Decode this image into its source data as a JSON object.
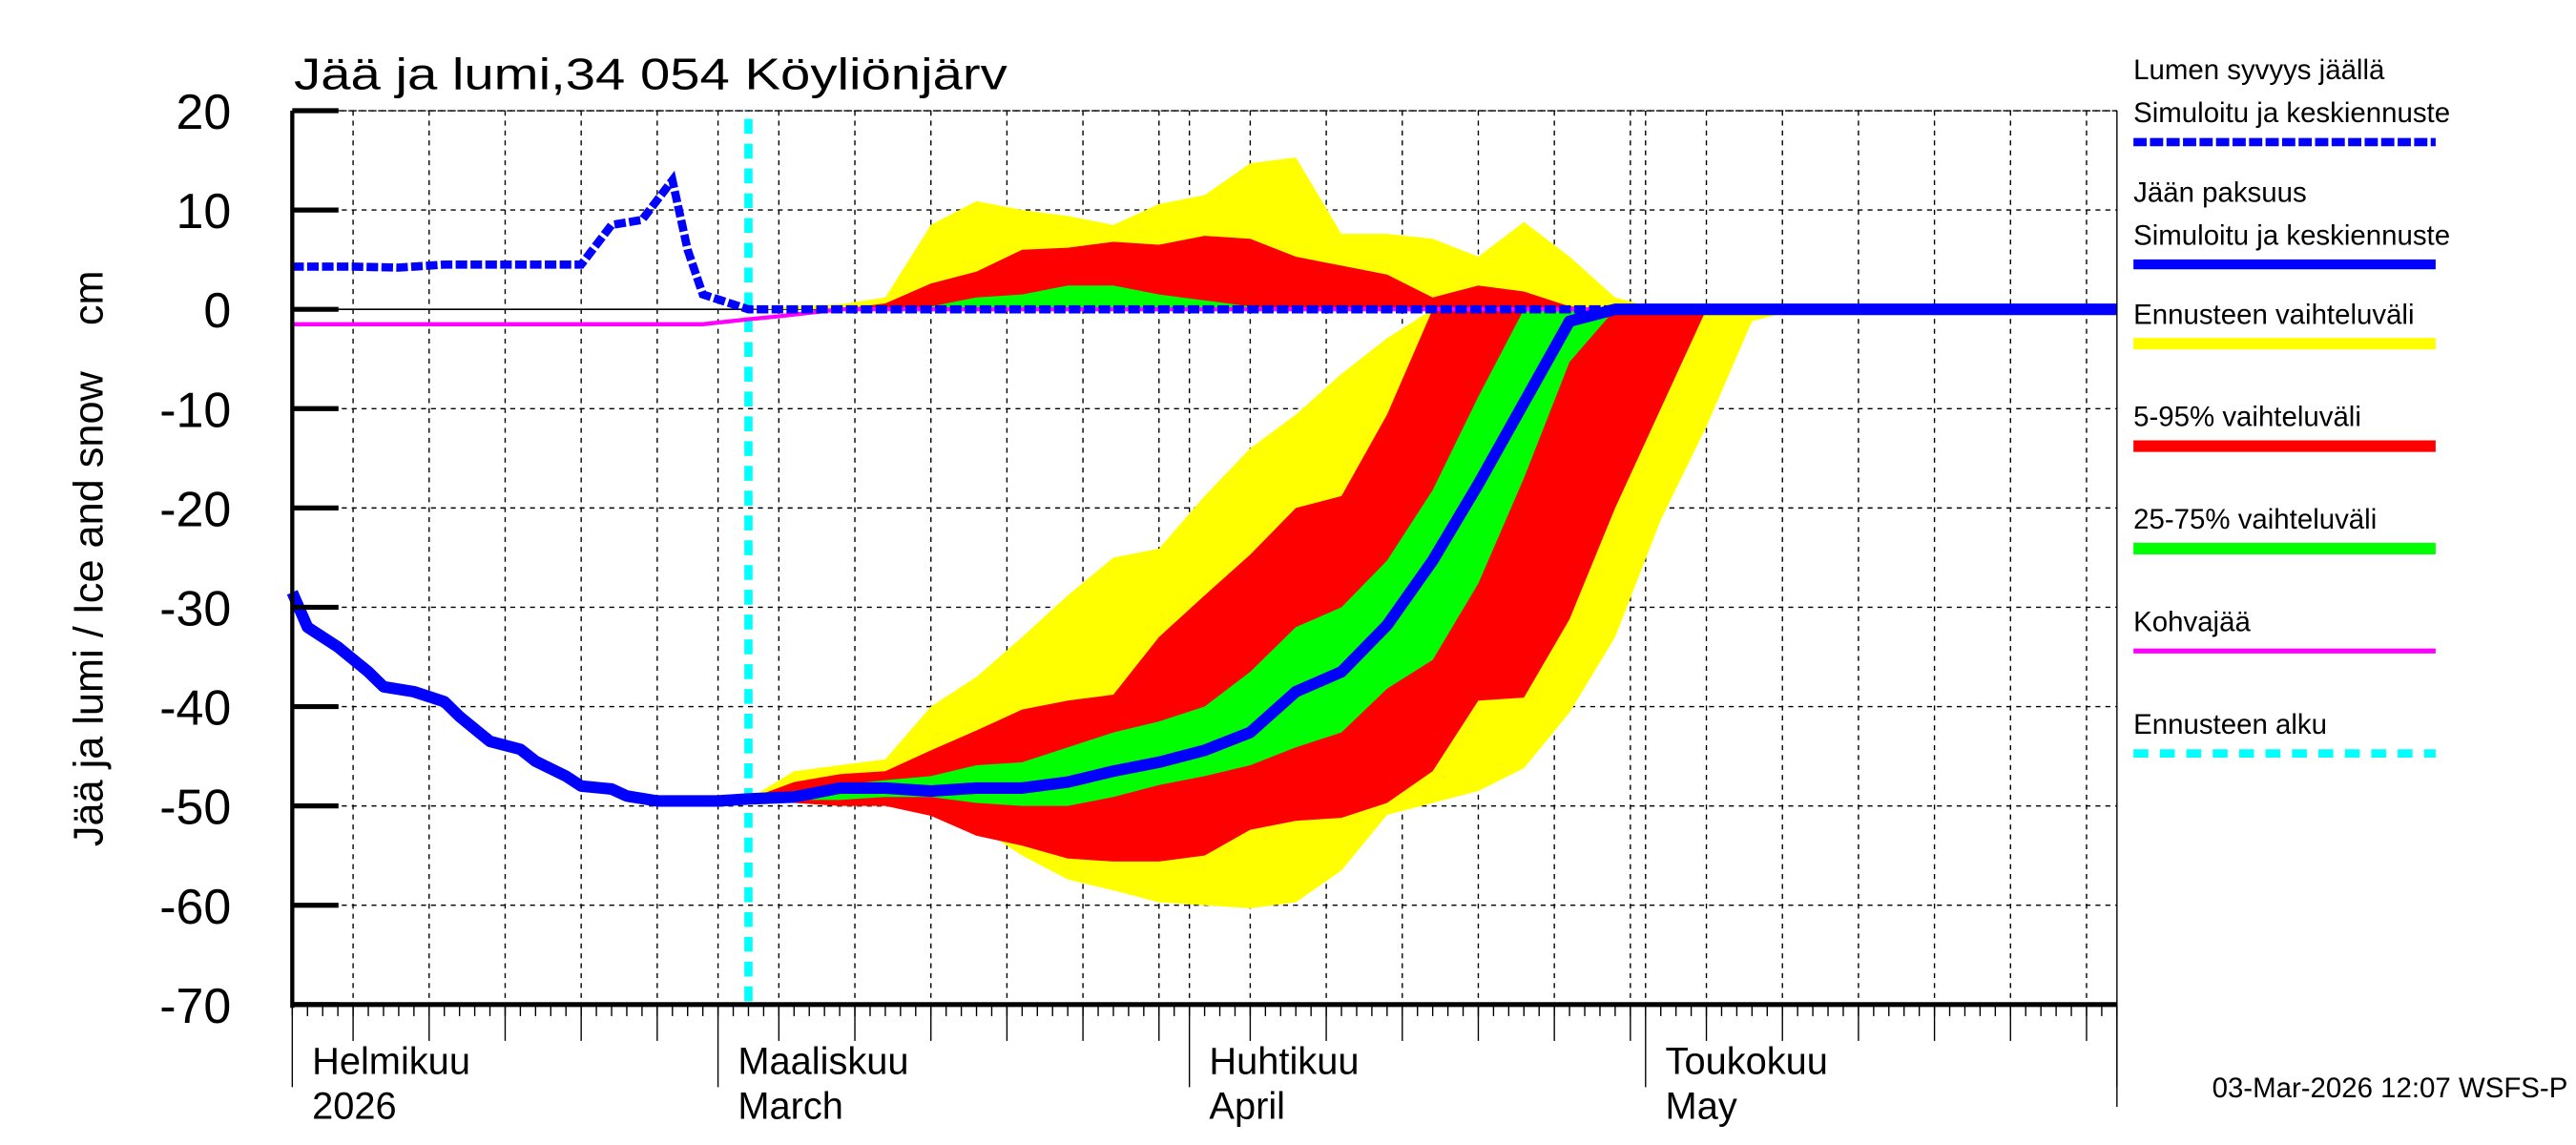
{
  "chart_data": {
    "type": "area",
    "title": "Jää ja lumi,34 054 Köyliönjärv",
    "ylabel": "Jää ja lumi / Ice and snow    cm",
    "ylim": [
      -70,
      20
    ],
    "yticks": [
      20,
      10,
      0,
      -10,
      -20,
      -30,
      -40,
      -50,
      -60,
      -70
    ],
    "xlim": [
      "2026-02-01",
      "2026-06-01"
    ],
    "grid": true,
    "legend_position": "right",
    "x_month_labels": [
      {
        "date": "2026-02-01",
        "fi": "Helmikuu",
        "en": "2026"
      },
      {
        "date": "2026-03-01",
        "fi": "Maaliskuu",
        "en": "March"
      },
      {
        "date": "2026-04-01",
        "fi": "Huhtikuu",
        "en": "April"
      },
      {
        "date": "2026-05-01",
        "fi": "Toukokuu",
        "en": "May"
      }
    ],
    "forecast_start": "2026-03-03",
    "colors": {
      "snow": "#0000ff",
      "ice": "#0000ff",
      "range": "#ffff00",
      "p5_95": "#ff0000",
      "p25_75": "#00ff00",
      "slush": "#ff00ff",
      "forecast_start": "#00ffff"
    },
    "snow_history": {
      "dates": [
        "2026-02-01",
        "2026-02-05",
        "2026-02-08",
        "2026-02-11",
        "2026-02-15",
        "2026-02-20",
        "2026-02-22",
        "2026-02-24",
        "2026-02-26",
        "2026-02-27",
        "2026-02-28",
        "2026-03-03",
        "2026-06-01"
      ],
      "values": [
        4.3,
        4.3,
        4.2,
        4.5,
        4.5,
        4.5,
        8.5,
        9,
        13,
        6,
        1.5,
        0,
        0
      ]
    },
    "ice_history": {
      "dates": [
        "2026-02-01",
        "2026-02-02",
        "2026-02-04",
        "2026-02-06",
        "2026-02-07",
        "2026-02-09",
        "2026-02-11",
        "2026-02-12",
        "2026-02-14",
        "2026-02-16",
        "2026-02-17",
        "2026-02-19",
        "2026-02-20",
        "2026-02-22",
        "2026-02-23",
        "2026-02-25",
        "2026-03-01",
        "2026-03-03"
      ],
      "values": [
        -28.5,
        -32,
        -34,
        -36.5,
        -38,
        -38.5,
        -39.5,
        -41,
        -43.5,
        -44.3,
        -45.5,
        -47,
        -48,
        -48.3,
        -49,
        -49.5,
        -49.5,
        -49.3
      ]
    },
    "slush_ice": {
      "dates": [
        "2026-02-01",
        "2026-02-28",
        "2026-03-03",
        "2026-03-05",
        "2026-03-09",
        "2026-06-01"
      ],
      "values": [
        -1.5,
        -1.5,
        -1,
        -0.7,
        0,
        0
      ]
    },
    "forecast": {
      "dates": [
        "2026-03-03",
        "2026-03-06",
        "2026-03-09",
        "2026-03-12",
        "2026-03-15",
        "2026-03-18",
        "2026-03-21",
        "2026-03-24",
        "2026-03-27",
        "2026-03-30",
        "2026-04-02",
        "2026-04-05",
        "2026-04-08",
        "2026-04-11",
        "2026-04-14",
        "2026-04-17",
        "2026-04-20",
        "2026-04-23",
        "2026-04-26",
        "2026-04-29",
        "2026-05-02",
        "2026-05-05",
        "2026-05-08",
        "2026-05-11",
        "2026-05-14",
        "2026-06-01"
      ],
      "ice_median": [
        -49.3,
        -49.1,
        -48.2,
        -48.2,
        -48.5,
        -48.2,
        -48.2,
        -47.6,
        -46.5,
        -45.6,
        -44.4,
        -42.6,
        -38.5,
        -36.5,
        -31.8,
        -25.3,
        -17.6,
        -9.4,
        -1.2,
        0,
        0,
        0,
        0,
        0,
        0,
        0
      ],
      "ice_range_hi": [
        -49.3,
        -46.5,
        -45.9,
        -45.3,
        -40,
        -37,
        -33,
        -28.8,
        -25,
        -24.1,
        -18.8,
        -14,
        -10.6,
        -6.5,
        -2.9,
        0,
        0,
        0,
        0,
        0,
        0,
        0,
        0,
        0,
        0,
        0
      ],
      "ice_range_lo": [
        -49.3,
        -49.7,
        -50,
        -50,
        -50.3,
        -52,
        -55,
        -57.4,
        -58.5,
        -59.7,
        -60,
        -60.3,
        -59.7,
        -56.5,
        -50.9,
        -49.7,
        -48.5,
        -46.2,
        -40.6,
        -33,
        -21.2,
        -11.8,
        -1.2,
        0,
        0,
        0
      ],
      "ice_p5_95_hi": [
        -49.3,
        -47.6,
        -46.8,
        -46.5,
        -44.4,
        -42.4,
        -40.3,
        -39.4,
        -38.8,
        -33,
        -28.8,
        -24.7,
        -20,
        -18.8,
        -10.6,
        0,
        0,
        0,
        0,
        0,
        0,
        0,
        0,
        0,
        0,
        0
      ],
      "ice_p5_95_lo": [
        -49.3,
        -49.7,
        -50,
        -50,
        -51,
        -53,
        -54,
        -55.3,
        -55.6,
        -55.6,
        -55,
        -52.4,
        -51.5,
        -51.2,
        -49.7,
        -46.5,
        -39.4,
        -39.1,
        -31.2,
        -20,
        -10,
        0,
        0,
        0,
        0,
        0
      ],
      "ice_p25_75_hi": [
        -49.3,
        -48.5,
        -47.9,
        -47.4,
        -47,
        -45.9,
        -45.6,
        -44.1,
        -42.6,
        -41.5,
        -40,
        -36.5,
        -32,
        -30,
        -25.3,
        -18.2,
        -8.8,
        0,
        0,
        0,
        0,
        0,
        0,
        0,
        0,
        0
      ],
      "ice_p25_75_lo": [
        -49.3,
        -49.4,
        -49.4,
        -49.1,
        -49.1,
        -49.7,
        -50,
        -50,
        -49.1,
        -47.9,
        -47,
        -45.9,
        -44.1,
        -42.6,
        -38.2,
        -35.3,
        -27.6,
        -17,
        -5.3,
        0,
        0,
        0,
        0,
        0,
        0,
        0
      ],
      "snow_range_hi": [
        0,
        0.3,
        0.5,
        1.2,
        8.5,
        10.9,
        10,
        9.4,
        8.5,
        10.6,
        11.5,
        14.7,
        15.3,
        7.6,
        7.6,
        7.1,
        5.3,
        8.8,
        5.3,
        1.2,
        0,
        0,
        0,
        0,
        0,
        0
      ],
      "snow_p5_95_hi": [
        0,
        0,
        0,
        0.6,
        2.6,
        3.8,
        6,
        6.2,
        6.8,
        6.5,
        7.4,
        7.1,
        5.3,
        4.4,
        3.5,
        1.2,
        2.4,
        1.8,
        0.3,
        0,
        0,
        0,
        0,
        0,
        0,
        0
      ],
      "snow_p25_75_hi": [
        0,
        0,
        0,
        0,
        0.3,
        1.2,
        1.5,
        2.4,
        2.4,
        1.5,
        0.9,
        0.3,
        0,
        0,
        0,
        0,
        0,
        0,
        0,
        0,
        0,
        0,
        0,
        0,
        0,
        0
      ]
    }
  },
  "legend": [
    {
      "line1": "Lumen syvyys jäällä",
      "line2": "Simuloitu ja keskiennuste",
      "color": "#0000ff",
      "style": "dashed-thick"
    },
    {
      "line1": "Jään paksuus",
      "line2": "Simuloitu ja keskiennuste",
      "color": "#0000ff",
      "style": "solid-thick"
    },
    {
      "line1": "Ennusteen vaihteluväli",
      "color": "#ffff00",
      "style": "band"
    },
    {
      "line1": "5-95% vaihteluväli",
      "color": "#ff0000",
      "style": "band"
    },
    {
      "line1": "25-75% vaihteluväli",
      "color": "#00ff00",
      "style": "band"
    },
    {
      "line1": "Kohvajää",
      "color": "#ff00ff",
      "style": "thin"
    },
    {
      "line1": "Ennusteen alku",
      "color": "#00ffff",
      "style": "dashed"
    }
  ],
  "footer": "03-Mar-2026 12:07 WSFS-P"
}
